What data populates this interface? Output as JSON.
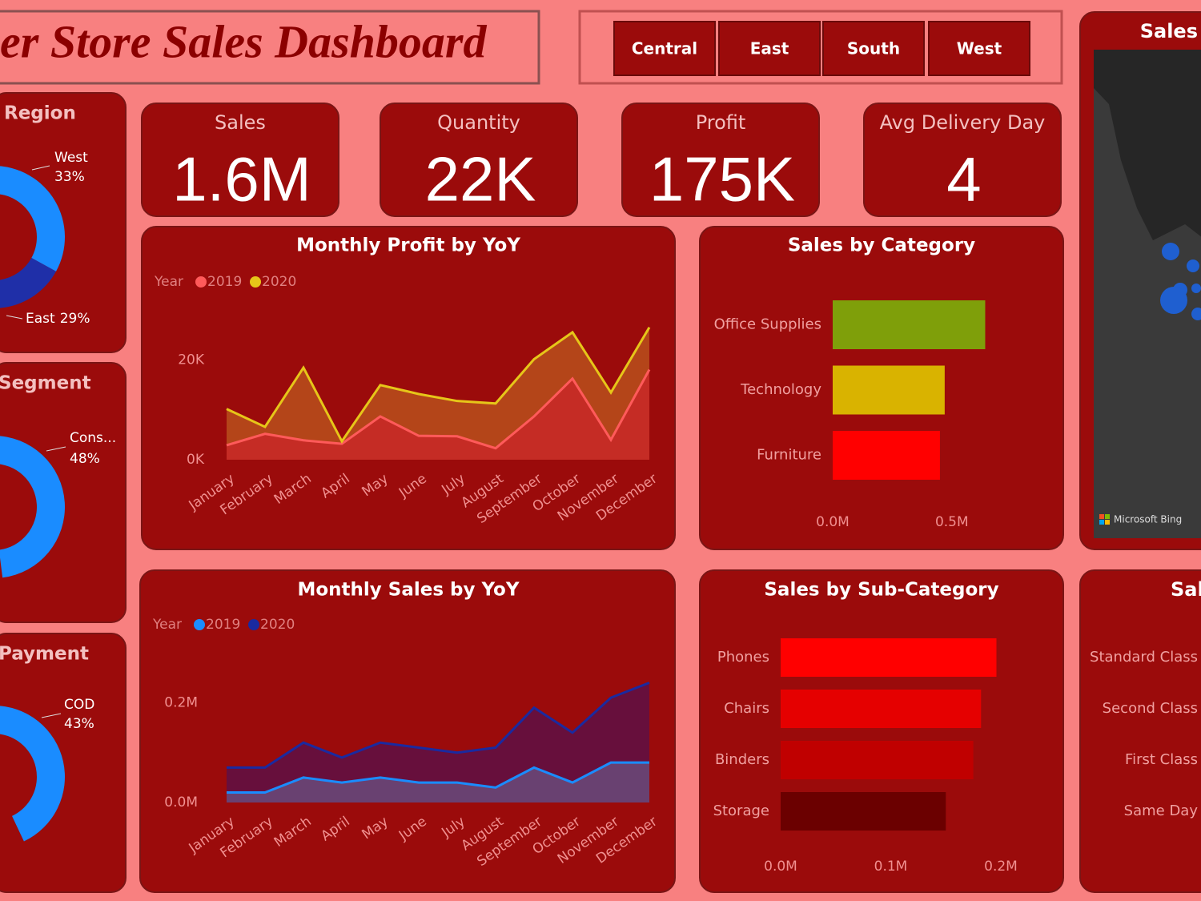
{
  "header": {
    "title": "er Store Sales Dashboard"
  },
  "slicer": {
    "options": [
      "Central",
      "East",
      "South",
      "West"
    ]
  },
  "kpis": [
    {
      "title": "Sales",
      "value": "1.6M"
    },
    {
      "title": "Quantity",
      "value": "22K"
    },
    {
      "title": "Profit",
      "value": "175K"
    },
    {
      "title": "Avg Delivery Day",
      "value": "4"
    }
  ],
  "map": {
    "title": "Sales",
    "attribution": "Microsoft Bing"
  },
  "ship_mode": {
    "title": "Sal",
    "categories": [
      "Standard Class",
      "Second Class",
      "First Class",
      "Same Day"
    ]
  },
  "chart_data": [
    {
      "type": "pie",
      "title": "Region",
      "categories": [
        "West",
        "East"
      ],
      "values": [
        33,
        29
      ],
      "value_labels": [
        "33%",
        "29%"
      ],
      "colors": [
        "#1a8cff",
        "#1f2fa8"
      ]
    },
    {
      "type": "pie",
      "title": "Segment",
      "categories": [
        "Cons..."
      ],
      "values": [
        48
      ],
      "value_labels": [
        "48%"
      ],
      "colors": [
        "#1a8cff"
      ]
    },
    {
      "type": "pie",
      "title": "Payment",
      "categories": [
        "COD"
      ],
      "values": [
        43
      ],
      "value_labels": [
        "43%"
      ],
      "colors": [
        "#1a8cff"
      ]
    },
    {
      "type": "area",
      "title": "Monthly Profit by YoY",
      "legend_title": "Year",
      "categories": [
        "January",
        "February",
        "March",
        "April",
        "May",
        "June",
        "July",
        "August",
        "September",
        "October",
        "November",
        "December"
      ],
      "series": [
        {
          "name": "2019",
          "color": "#ff5a5a",
          "fill": "#c82828",
          "values": [
            2.9,
            5.2,
            3.9,
            3.2,
            8.7,
            4.8,
            4.7,
            2.3,
            8.7,
            16.3,
            4.0,
            18.1
          ]
        },
        {
          "name": "2020",
          "color": "#e6c619",
          "fill": "#b8501c",
          "values": [
            10.2,
            6.6,
            18.5,
            3.7,
            15.0,
            13.2,
            11.8,
            11.3,
            20.2,
            25.6,
            13.5,
            26.6
          ]
        }
      ],
      "ylim": [
        0,
        28
      ],
      "yticks": [
        {
          "value": 0,
          "label": "0K"
        },
        {
          "value": 20,
          "label": "20K"
        }
      ]
    },
    {
      "type": "barh",
      "title": "Sales by Category",
      "categories": [
        "Office Supplies",
        "Technology",
        "Furniture"
      ],
      "values": [
        0.64,
        0.47,
        0.45
      ],
      "colors": [
        "#7f9f0a",
        "#d9b300",
        "#ff0000"
      ],
      "xlim": [
        0,
        0.84
      ],
      "xticks": [
        {
          "value": 0,
          "label": "0.0M"
        },
        {
          "value": 0.5,
          "label": "0.5M"
        }
      ]
    },
    {
      "type": "area",
      "title": "Monthly Sales by YoY",
      "legend_title": "Year",
      "categories": [
        "January",
        "February",
        "March",
        "April",
        "May",
        "June",
        "July",
        "August",
        "September",
        "October",
        "November",
        "December"
      ],
      "series": [
        {
          "name": "2019",
          "color": "#1a8cff",
          "fill": "#6a4a7a",
          "values": [
            0.02,
            0.02,
            0.05,
            0.04,
            0.05,
            0.04,
            0.04,
            0.03,
            0.07,
            0.04,
            0.08,
            0.08
          ]
        },
        {
          "name": "2020",
          "color": "#1a2aa0",
          "fill": "#5e1045",
          "values": [
            0.07,
            0.07,
            0.12,
            0.09,
            0.12,
            0.11,
            0.1,
            0.11,
            0.19,
            0.14,
            0.21,
            0.24
          ]
        }
      ],
      "ylim": [
        0,
        0.26
      ],
      "yticks": [
        {
          "value": 0,
          "label": "0.0M"
        },
        {
          "value": 0.2,
          "label": "0.2M"
        }
      ]
    },
    {
      "type": "barh",
      "title": "Sales by Sub-Category",
      "categories": [
        "Phones",
        "Chairs",
        "Binders",
        "Storage"
      ],
      "values": [
        0.196,
        0.182,
        0.175,
        0.15
      ],
      "colors": [
        "#ff0000",
        "#e50000",
        "#c00000",
        "#6b0000"
      ],
      "xlim": [
        0,
        0.24
      ],
      "xticks": [
        {
          "value": 0,
          "label": "0.0M"
        },
        {
          "value": 0.1,
          "label": "0.1M"
        },
        {
          "value": 0.2,
          "label": "0.2M"
        }
      ]
    }
  ]
}
